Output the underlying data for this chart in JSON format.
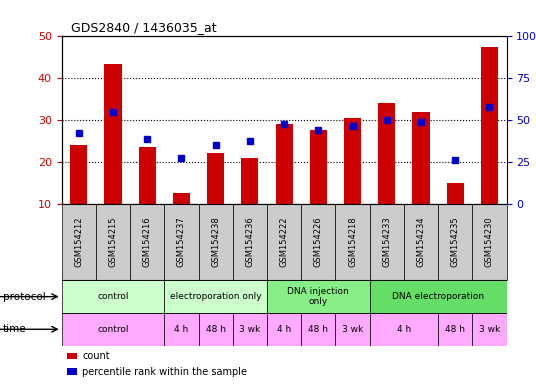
{
  "title": "GDS2840 / 1436035_at",
  "samples": [
    "GSM154212",
    "GSM154215",
    "GSM154216",
    "GSM154237",
    "GSM154238",
    "GSM154236",
    "GSM154222",
    "GSM154226",
    "GSM154218",
    "GSM154233",
    "GSM154234",
    "GSM154235",
    "GSM154230"
  ],
  "counts": [
    24.0,
    43.5,
    23.5,
    12.5,
    22.0,
    21.0,
    29.0,
    27.5,
    30.5,
    34.0,
    32.0,
    15.0,
    47.5
  ],
  "percentile_ranks": [
    27.0,
    32.0,
    25.5,
    21.0,
    24.0,
    25.0,
    29.0,
    27.5,
    28.5,
    30.0,
    29.5,
    20.5,
    33.0
  ],
  "ylim_left": [
    10,
    50
  ],
  "ylim_right": [
    0,
    100
  ],
  "yticks_left": [
    10,
    20,
    30,
    40,
    50
  ],
  "yticks_right": [
    0,
    25,
    50,
    75,
    100
  ],
  "bar_color": "#cc0000",
  "dot_color": "#0000cc",
  "bar_width": 0.5,
  "protocol_data": [
    {
      "label": "control",
      "start": 0,
      "end": 3,
      "color": "#ccffcc"
    },
    {
      "label": "electroporation only",
      "start": 3,
      "end": 6,
      "color": "#ccffcc"
    },
    {
      "label": "DNA injection\nonly",
      "start": 6,
      "end": 9,
      "color": "#88ee88"
    },
    {
      "label": "DNA electroporation",
      "start": 9,
      "end": 13,
      "color": "#66dd66"
    }
  ],
  "time_data": [
    {
      "label": "control",
      "start": 0,
      "end": 3
    },
    {
      "label": "4 h",
      "start": 3,
      "end": 4
    },
    {
      "label": "48 h",
      "start": 4,
      "end": 5
    },
    {
      "label": "3 wk",
      "start": 5,
      "end": 6
    },
    {
      "label": "4 h",
      "start": 6,
      "end": 7
    },
    {
      "label": "48 h",
      "start": 7,
      "end": 8
    },
    {
      "label": "3 wk",
      "start": 8,
      "end": 9
    },
    {
      "label": "4 h",
      "start": 9,
      "end": 11
    },
    {
      "label": "48 h",
      "start": 11,
      "end": 12
    },
    {
      "label": "3 wk",
      "start": 12,
      "end": 13
    }
  ],
  "time_color": "#ffaaff",
  "xtick_bg_color": "#cccccc",
  "background_color": "#ffffff",
  "grid_color": "#000000",
  "tick_color_left": "#cc0000",
  "tick_color_right": "#0000cc"
}
